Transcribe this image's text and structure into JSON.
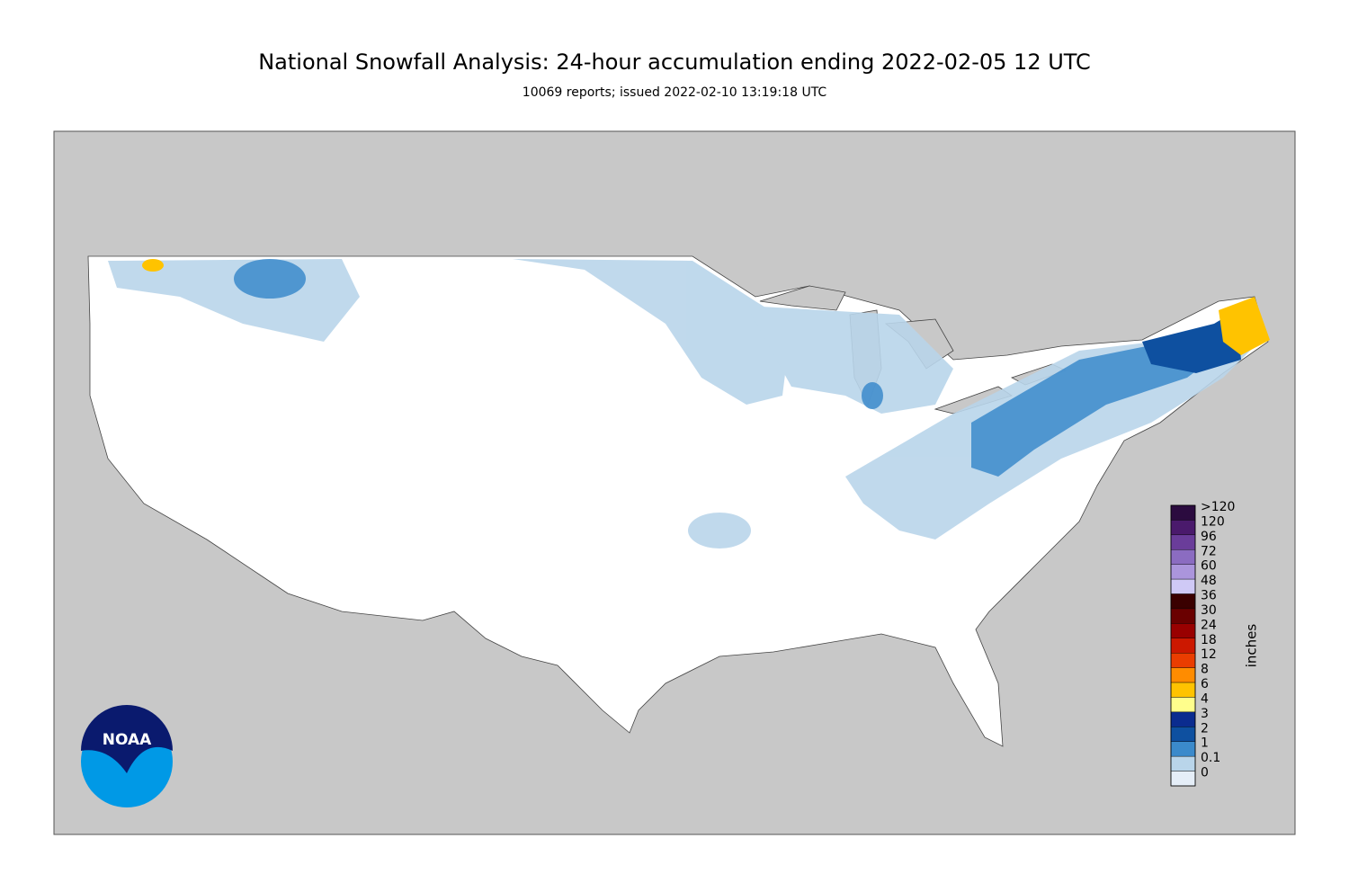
{
  "header": {
    "title": "National Snowfall Analysis: 24-hour accumulation ending 2022-02-05 12 UTC",
    "subtitle": "10069 reports; issued 2022-02-10 13:19:18 UTC"
  },
  "logo": {
    "text": "NOAA"
  },
  "legend": {
    "title": "inches",
    "items": [
      {
        "label": ">120",
        "color": "#2b0b3f"
      },
      {
        "label": "120",
        "color": "#4a1a6c"
      },
      {
        "label": "96",
        "color": "#6a3d9a"
      },
      {
        "label": "72",
        "color": "#8b6cc1"
      },
      {
        "label": "60",
        "color": "#ab95dc"
      },
      {
        "label": "48",
        "color": "#cfc9f6"
      },
      {
        "label": "36",
        "color": "#3a0000"
      },
      {
        "label": "30",
        "color": "#6a0000"
      },
      {
        "label": "24",
        "color": "#990000"
      },
      {
        "label": "18",
        "color": "#cc1800"
      },
      {
        "label": "12",
        "color": "#ea3d00"
      },
      {
        "label": "8",
        "color": "#ff8c00"
      },
      {
        "label": "6",
        "color": "#ffc300"
      },
      {
        "label": "4",
        "color": "#fffe8c"
      },
      {
        "label": "3",
        "color": "#0b2c8f"
      },
      {
        "label": "2",
        "color": "#0e50a0"
      },
      {
        "label": "1",
        "color": "#3b8acb"
      },
      {
        "label": "0.1",
        "color": "#b9d5ea"
      },
      {
        "label": "0",
        "color": "#e5eef8"
      }
    ]
  }
}
